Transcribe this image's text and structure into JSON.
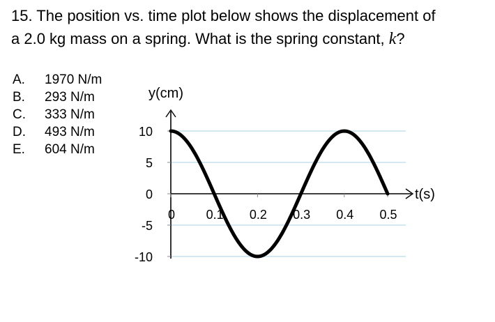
{
  "question": {
    "line1": "15.  The position vs. time plot below shows the displacement of",
    "line2_prefix": "a 2.0 kg mass on a spring.  What is the spring constant, ",
    "variable": "k",
    "line2_suffix": "?"
  },
  "choices": [
    {
      "letter": "A.",
      "text": "1970 N/m"
    },
    {
      "letter": "B.",
      "text": "293 N/m"
    },
    {
      "letter": "C.",
      "text": "333 N/m"
    },
    {
      "letter": "D.",
      "text": "493 N/m"
    },
    {
      "letter": "E.",
      "text": "604 N/m"
    }
  ],
  "chart_data": {
    "type": "line",
    "ylabel": "y(cm)",
    "xlabel": "t(s)",
    "xlim": [
      0,
      0.5
    ],
    "ylim": [
      -10,
      10
    ],
    "x_ticks": [
      "0",
      "0.1",
      "0.2",
      "0.3",
      "0.4",
      "0.5"
    ],
    "y_ticks": [
      "10",
      "5",
      "0",
      "-5",
      "-10"
    ],
    "grid": true,
    "series": [
      {
        "function": "10*cos(2*pi*t/0.4)",
        "amplitude": 10,
        "period": 0.4,
        "x": [
          0,
          0.1,
          0.2,
          0.3,
          0.4,
          0.5
        ],
        "y": [
          10,
          0,
          -10,
          0,
          10,
          0
        ]
      }
    ],
    "colors": {
      "curve": "#000000",
      "grid": "#b9dbe8",
      "axis": "#000000"
    }
  }
}
